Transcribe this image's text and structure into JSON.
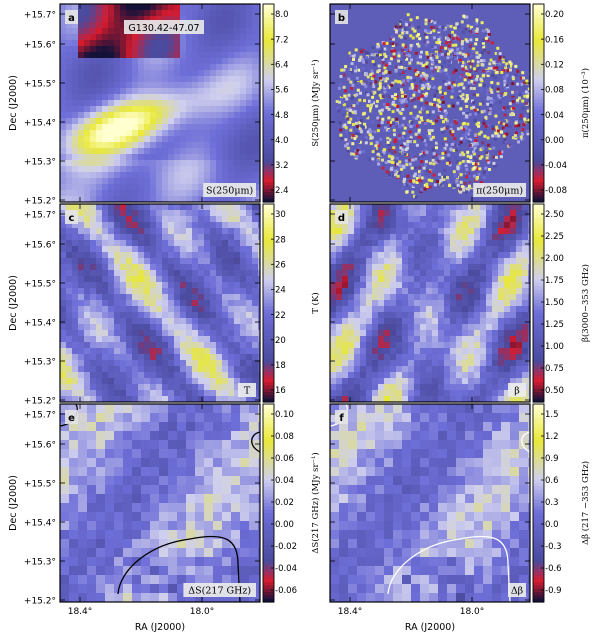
{
  "figure": {
    "source_title": "G130.42-47.07",
    "ra_label": "RA (J2000)",
    "dec_label": "Dec (J2000)",
    "ra_ticks": [
      "18.4°",
      "18.0°"
    ],
    "dec_ticks": [
      "+15.2°",
      "+15.3°",
      "+15.4°",
      "+15.5°",
      "+15.6°",
      "+15.7°"
    ]
  },
  "colors": {
    "low_dark": "#15123a",
    "low_red": "#d81b2e",
    "mid_blue": "#6e6ed8",
    "high_pale": "#cfcfee",
    "high_yellow": "#e8e83a",
    "cbar_top": "#ffffd0",
    "frame": "#000000",
    "contour_dark": "#000000",
    "contour_light": "#ffffff"
  },
  "panels": [
    {
      "letter": "a",
      "label": "S(250μm)",
      "cbar_label": "S(250μm) (MJy sr⁻¹)",
      "cbar_ticks": [
        "2.4",
        "3.2",
        "4.0",
        "4.8",
        "5.6",
        "6.4",
        "7.2",
        "8.0"
      ],
      "contour": "none",
      "show_dec": true,
      "show_ra": false
    },
    {
      "letter": "b",
      "label": "π(250μm)",
      "cbar_label": "π(250μm) (10⁻³)",
      "cbar_ticks": [
        "-0.08",
        "-0.04",
        "0.00",
        "0.04",
        "0.08",
        "0.12",
        "0.16",
        "0.20"
      ],
      "contour": "none",
      "show_dec": false,
      "show_ra": false
    },
    {
      "letter": "c",
      "label": "T",
      "cbar_label": "T (K)",
      "cbar_ticks": [
        "16",
        "18",
        "20",
        "22",
        "24",
        "26",
        "28",
        "30"
      ],
      "contour": "none",
      "show_dec": true,
      "show_ra": false
    },
    {
      "letter": "d",
      "label": "β",
      "cbar_label": "β(3000−353 GHz)",
      "cbar_ticks": [
        "0.50",
        "0.75",
        "1.00",
        "1.25",
        "1.50",
        "1.75",
        "2.00",
        "2.25",
        "2.50"
      ],
      "contour": "none",
      "show_dec": false,
      "show_ra": false
    },
    {
      "letter": "e",
      "label": "ΔS(217 GHz)",
      "cbar_label": "ΔS(217 GHz) (MJy sr⁻¹)",
      "cbar_ticks": [
        "-0.06",
        "-0.04",
        "-0.02",
        "0.00",
        "0.02",
        "0.04",
        "0.06",
        "0.08",
        "0.10"
      ],
      "contour": "dark",
      "show_dec": true,
      "show_ra": true
    },
    {
      "letter": "f",
      "label": "Δβ",
      "cbar_label": "Δβ (217 −353 GHz)",
      "cbar_ticks": [
        "-0.9",
        "-0.6",
        "-0.3",
        "0.0",
        "0.3",
        "0.6",
        "0.9",
        "1.2",
        "1.5"
      ],
      "contour": "light",
      "show_dec": false,
      "show_ra": true
    }
  ]
}
